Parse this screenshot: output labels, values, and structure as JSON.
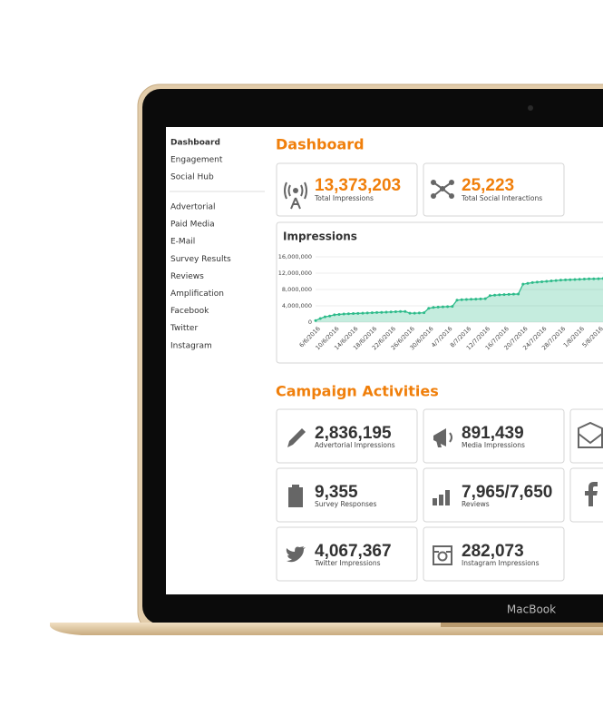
{
  "device_label": "MacBook",
  "sidebar": {
    "top": [
      "Dashboard",
      "Engagement",
      "Social Hub"
    ],
    "bottom": [
      "Advertorial",
      "Paid Media",
      "E-Mail",
      "Survey Results",
      "Reviews",
      "Amplification",
      "Facebook",
      "Twitter",
      "Instagram"
    ]
  },
  "header": {
    "title": "Dashboard"
  },
  "summary": [
    {
      "value": "13,373,203",
      "label": "Total Impressions"
    },
    {
      "value": "25,223",
      "label": "Total Social Interactions"
    }
  ],
  "chart_data": {
    "type": "area",
    "title": "Impressions",
    "categories": [
      "6/6/2016",
      null,
      null,
      null,
      "10/6/2016",
      null,
      null,
      null,
      "14/6/2016",
      null,
      null,
      null,
      "18/6/2016",
      null,
      null,
      null,
      "22/6/2016",
      null,
      null,
      null,
      "26/6/2016",
      null,
      null,
      null,
      "30/6/2016",
      null,
      null,
      null,
      "4/7/2016",
      null,
      null,
      null,
      "8/7/2016",
      null,
      null,
      null,
      "12/7/2016",
      null,
      null,
      null,
      "16/7/2016",
      null,
      null,
      null,
      "20/7/2016",
      null,
      null,
      null,
      "24/7/2016",
      null,
      null,
      null,
      "28/7/2016",
      null,
      null,
      null,
      "1/8/2016",
      null,
      null,
      null,
      "5/8/2016",
      null,
      null
    ],
    "values": [
      400000,
      900000,
      1300000,
      1500000,
      1800000,
      1900000,
      2000000,
      2050000,
      2100000,
      2150000,
      2200000,
      2250000,
      2300000,
      2350000,
      2400000,
      2450000,
      2500000,
      2550000,
      2600000,
      2600000,
      2200000,
      2200000,
      2250000,
      2300000,
      3400000,
      3600000,
      3700000,
      3750000,
      3800000,
      3850000,
      5400000,
      5500000,
      5550000,
      5600000,
      5650000,
      5700000,
      5750000,
      6500000,
      6600000,
      6700000,
      6750000,
      6800000,
      6850000,
      6900000,
      9300000,
      9500000,
      9700000,
      9800000,
      9900000,
      10000000,
      10100000,
      10200000,
      10300000,
      10350000,
      10400000,
      10450000,
      10500000,
      10550000,
      10600000,
      10600000,
      10650000,
      10700000,
      10700000
    ],
    "ylim": [
      0,
      16000000
    ],
    "yticks": [
      0,
      {
        "value": 4000000,
        "label": "4,000,000"
      },
      {
        "value": 8000000,
        "label": "8,000,000"
      },
      {
        "value": 12000000,
        "label": "12,000,000"
      },
      {
        "value": 16000000,
        "label": "16,000,000"
      }
    ],
    "color": "#2dbb8a",
    "grid": true
  },
  "section_title": "Campaign Activities",
  "activities": [
    {
      "value": "2,836,195",
      "label": "Advertorial Impressions"
    },
    {
      "value": "891,439",
      "label": "Media Impressions"
    },
    {
      "value": "9,355",
      "label": "Survey Responses"
    },
    {
      "value": "7,965/7,650",
      "label": "Reviews"
    },
    {
      "value": "4,067,367",
      "label": "Twitter Impressions"
    },
    {
      "value": "282,073",
      "label": "Instagram Impressions"
    }
  ]
}
